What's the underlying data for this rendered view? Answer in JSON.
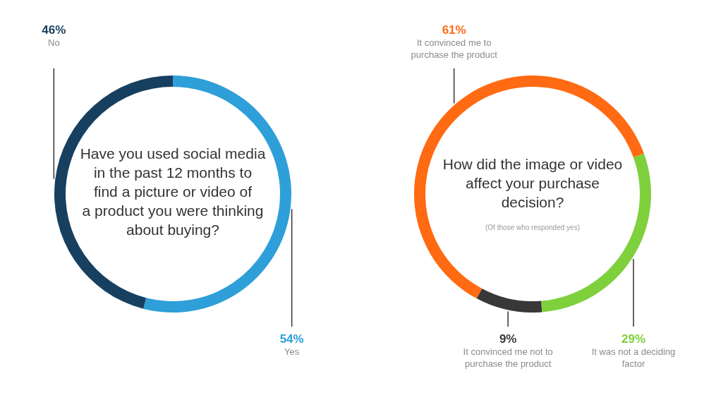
{
  "chart_data": [
    {
      "type": "donut",
      "title": "Have you used social media in the past 12 months to find a picture or video of a product you were thinking about buying?",
      "categories": [
        "Yes",
        "No"
      ],
      "values": [
        54,
        46
      ],
      "value_labels": [
        "54%",
        "46%"
      ],
      "colors": [
        "#2e9fd8",
        "#173f5f"
      ]
    },
    {
      "type": "donut",
      "title": "How did the image or video affect your purchase decision?",
      "subtitle": "(Of those who responded yes)",
      "categories": [
        "It was not a deciding factor",
        "It convinced me not to purchase the product",
        "It convinced me to purchase the product"
      ],
      "values": [
        29,
        9,
        61
      ],
      "value_labels": [
        "29%",
        "9%",
        "61%"
      ],
      "colors": [
        "#7ed03c",
        "#383838",
        "#ff6a13"
      ]
    }
  ]
}
